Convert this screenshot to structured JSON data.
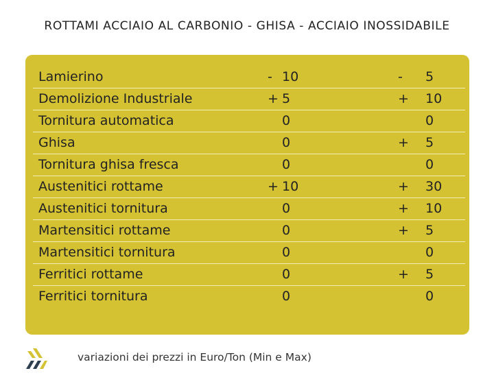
{
  "title": "ROTTAMI ACCIAIO AL CARBONIO - GHISA - ACCIAIO INOSSIDABILE",
  "table": {
    "rows": [
      {
        "name": "Lamierino",
        "min": {
          "sign": "-",
          "value": "10"
        },
        "max": {
          "sign": "-",
          "value": "5"
        }
      },
      {
        "name": "Demolizione Industriale",
        "min": {
          "sign": "+",
          "value": "5"
        },
        "max": {
          "sign": "+",
          "value": "10"
        }
      },
      {
        "name": "Tornitura automatica",
        "min": {
          "value": "0"
        },
        "max": {
          "value": "0"
        }
      },
      {
        "name": "Ghisa",
        "min": {
          "value": "0"
        },
        "max": {
          "sign": "+",
          "value": "5"
        }
      },
      {
        "name": "Tornitura ghisa fresca",
        "min": {
          "value": "0"
        },
        "max": {
          "value": "0"
        }
      },
      {
        "name": "Austenitici rottame",
        "min": {
          "sign": "+",
          "value": "10"
        },
        "max": {
          "sign": "+",
          "value": "30"
        }
      },
      {
        "name": "Austenitici tornitura",
        "min": {
          "value": "0"
        },
        "max": {
          "sign": "+",
          "value": "10"
        }
      },
      {
        "name": "Martensitici rottame",
        "min": {
          "value": "0"
        },
        "max": {
          "sign": "+",
          "value": "5"
        }
      },
      {
        "name": "Martensitici tornitura",
        "min": {
          "value": "0"
        },
        "max": {
          "value": "0"
        }
      },
      {
        "name": "Ferritici rottame",
        "min": {
          "value": "0"
        },
        "max": {
          "sign": "+",
          "value": "5"
        }
      },
      {
        "name": "Ferritici tornitura",
        "min": {
          "value": "0"
        },
        "max": {
          "value": "0"
        }
      }
    ]
  },
  "footer": {
    "note": "variazioni dei prezzi in Euro/Ton (Min e Max)"
  }
}
